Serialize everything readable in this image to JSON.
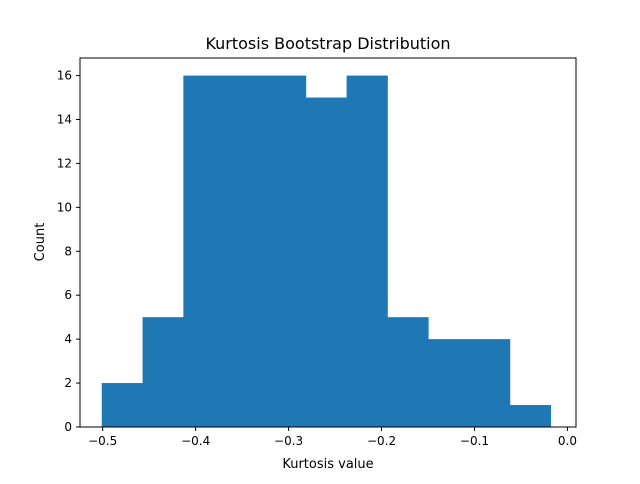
{
  "chart_data": {
    "type": "bar",
    "title": "Kurtosis Bootstrap Distribution",
    "xlabel": "Kurtosis value",
    "ylabel": "Count",
    "xlim": [
      -0.5244,
      0.0092
    ],
    "ylim": [
      0,
      16.8
    ],
    "xticks": [
      -0.5,
      -0.4,
      -0.3,
      -0.2,
      -0.1,
      0.0
    ],
    "xtick_labels": [
      "−0.5",
      "−0.4",
      "−0.3",
      "−0.2",
      "−0.1",
      "0.0"
    ],
    "yticks": [
      0,
      2,
      4,
      6,
      8,
      10,
      12,
      14,
      16
    ],
    "ytick_labels": [
      "0",
      "2",
      "4",
      "6",
      "8",
      "10",
      "12",
      "14",
      "16"
    ],
    "bar_color": "#1f77b4",
    "bin_edges": [
      -0.501,
      -0.4571,
      -0.4132,
      -0.3693,
      -0.3254,
      -0.2815,
      -0.2376,
      -0.1937,
      -0.1498,
      -0.1059,
      -0.062,
      -0.0181
    ],
    "values": [
      2,
      5,
      16,
      16,
      16,
      15,
      16,
      5,
      4,
      4,
      1
    ],
    "grid": false,
    "legend": "none"
  }
}
